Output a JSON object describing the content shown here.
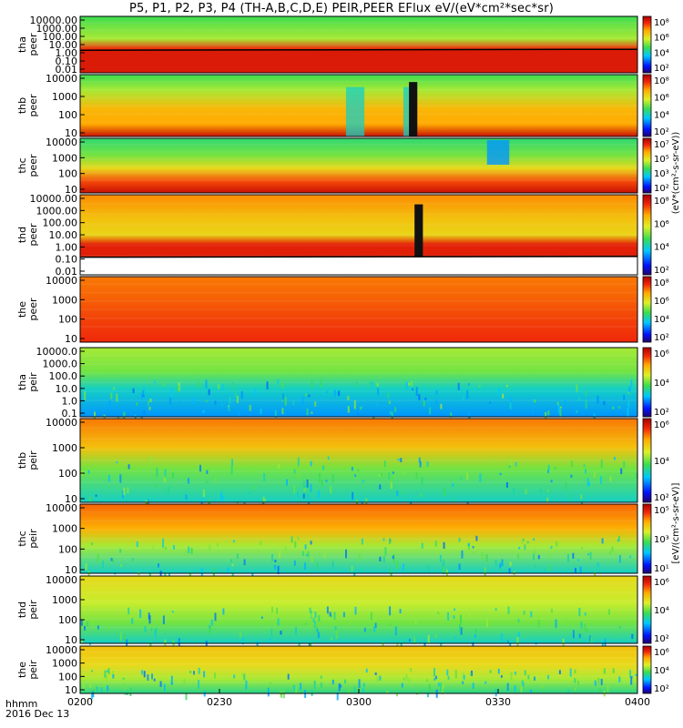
{
  "chart_data": {
    "type": "heatmap",
    "title": "P5, P1, P2, P3, P4 (TH-A,B,C,D,E) PEIR,PEER EFlux eV/(eV*cm²*sec*sr)",
    "x_start_label": "0200",
    "x_tick_labels": [
      "0200",
      "0230",
      "0300",
      "0330",
      "0400"
    ],
    "x_footer_label": "hhmm",
    "date_label": "2016 Dec 13",
    "colorbar_title_electron": "(eV*(cm²-s-sr-eV))",
    "colorbar_title_ion": "[eV/(cm²-s-sr-eV)]",
    "colorbar_ticks": [
      "10⁸",
      "10⁷",
      "10⁶",
      "10⁵",
      "10⁴",
      "10³",
      "10²",
      "10¹"
    ],
    "panels": [
      {
        "probe": "tha",
        "species": "peer",
        "y_ticks": [
          "10000.00",
          "1000.00",
          "100.00",
          "10.00",
          "1.00",
          "0.10",
          "0.01"
        ],
        "cbar_ticks": [
          "10⁸",
          "10⁶",
          "10⁴",
          "10²"
        ]
      },
      {
        "probe": "thb",
        "species": "peer",
        "y_ticks": [
          "10000",
          "1000",
          "100",
          "10"
        ],
        "cbar_ticks": [
          "10⁸",
          "10⁶",
          "10⁴",
          "10²"
        ]
      },
      {
        "probe": "thc",
        "species": "peer",
        "y_ticks": [
          "10000",
          "1000",
          "100",
          "10"
        ],
        "cbar_ticks": [
          "10⁷",
          "10⁵",
          "10³",
          "10²"
        ]
      },
      {
        "probe": "thd",
        "species": "peer",
        "y_ticks": [
          "10000.00",
          "1000.00",
          "100.00",
          "10.00",
          "1.00",
          "0.10",
          "0.01"
        ],
        "cbar_ticks": [
          "10⁸",
          "10⁶",
          "10⁴",
          "10²"
        ]
      },
      {
        "probe": "the",
        "species": "peer",
        "y_ticks": [
          "10000",
          "1000",
          "100",
          "10"
        ],
        "cbar_ticks": [
          "10⁸",
          "10⁶",
          "10⁴",
          "10²"
        ]
      },
      {
        "probe": "tha",
        "species": "peir",
        "y_ticks": [
          "10000.0",
          "1000.0",
          "100.0",
          "10.0",
          "1.0",
          "0.1"
        ],
        "cbar_ticks": [
          "10⁶",
          "10⁴",
          "10²"
        ]
      },
      {
        "probe": "thb",
        "species": "peir",
        "y_ticks": [
          "10000",
          "1000",
          "100",
          "10"
        ],
        "cbar_ticks": [
          "10⁶",
          "10⁴",
          "10²"
        ]
      },
      {
        "probe": "thc",
        "species": "peir",
        "y_ticks": [
          "10000",
          "1000",
          "100",
          "10"
        ],
        "cbar_ticks": [
          "10⁵",
          "10³",
          "10¹"
        ]
      },
      {
        "probe": "thd",
        "species": "peir",
        "y_ticks": [
          "10000",
          "1000",
          "100",
          "10"
        ],
        "cbar_ticks": [
          "10⁶",
          "10⁴",
          "10²"
        ]
      },
      {
        "probe": "the",
        "species": "peir",
        "y_ticks": [
          "10000",
          "1000",
          "100",
          "10"
        ],
        "cbar_ticks": [
          "10⁶",
          "10⁴",
          "10²"
        ]
      }
    ]
  }
}
